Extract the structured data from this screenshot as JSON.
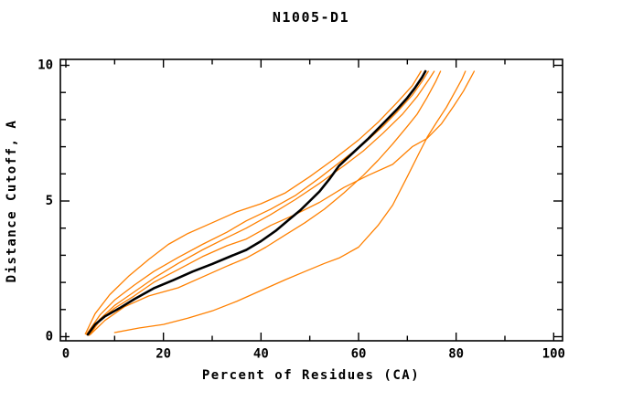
{
  "window": {
    "background": "#ffffff"
  },
  "chart_data": {
    "type": "line",
    "title": "N1005-D1",
    "xlabel": "Percent of Residues (CA)",
    "ylabel": "Distance Cutoff, A",
    "xlim": [
      0,
      100
    ],
    "ylim": [
      0,
      10
    ],
    "grid": false,
    "legend": "none",
    "frame": "full-box",
    "axis_color": "#000000",
    "highlight_color": "#000000",
    "comparison_color": "#ff8000",
    "x_major_ticks": [
      0,
      20,
      40,
      60,
      80,
      100
    ],
    "x_tick_labels": [
      "0",
      "20",
      "40",
      "60",
      "80",
      "100"
    ],
    "x_minor_tick_step": 10,
    "y_major_ticks": [
      0,
      5,
      10
    ],
    "y_tick_labels": [
      "0",
      "5",
      "10"
    ],
    "y_minor_tick_step": 1,
    "series": [
      {
        "name": "orange-curve-1",
        "color": "#ff8000",
        "line_width": 1.3,
        "points": [
          [
            4,
            0.1
          ],
          [
            6,
            0.85
          ],
          [
            9,
            1.55
          ],
          [
            13,
            2.25
          ],
          [
            17,
            2.85
          ],
          [
            21,
            3.4
          ],
          [
            25,
            3.8
          ],
          [
            30,
            4.2
          ],
          [
            35,
            4.6
          ],
          [
            40,
            4.9
          ],
          [
            45,
            5.3
          ],
          [
            50,
            5.9
          ],
          [
            55,
            6.55
          ],
          [
            60,
            7.25
          ],
          [
            64,
            7.9
          ],
          [
            68,
            8.65
          ],
          [
            71,
            9.25
          ],
          [
            72.8,
            9.78
          ]
        ]
      },
      {
        "name": "orange-curve-2",
        "color": "#ff8000",
        "line_width": 1.3,
        "points": [
          [
            4.2,
            0.08
          ],
          [
            7,
            0.8
          ],
          [
            10,
            1.35
          ],
          [
            14,
            1.9
          ],
          [
            18,
            2.4
          ],
          [
            23,
            2.92
          ],
          [
            28,
            3.4
          ],
          [
            33,
            3.85
          ],
          [
            37,
            4.27
          ],
          [
            42,
            4.7
          ],
          [
            47,
            5.2
          ],
          [
            52,
            5.85
          ],
          [
            57,
            6.55
          ],
          [
            61,
            7.1
          ],
          [
            65,
            7.75
          ],
          [
            68,
            8.3
          ],
          [
            71,
            8.9
          ],
          [
            73,
            9.4
          ],
          [
            74.3,
            9.78
          ]
        ]
      },
      {
        "name": "orange-curve-3",
        "color": "#ff8000",
        "line_width": 1.3,
        "points": [
          [
            4.5,
            0.05
          ],
          [
            7,
            0.65
          ],
          [
            10,
            1.15
          ],
          [
            14,
            1.65
          ],
          [
            18,
            2.15
          ],
          [
            23,
            2.7
          ],
          [
            28,
            3.2
          ],
          [
            33,
            3.65
          ],
          [
            37,
            4.0
          ],
          [
            42,
            4.5
          ],
          [
            47,
            5.05
          ],
          [
            52,
            5.65
          ],
          [
            57,
            6.3
          ],
          [
            61,
            6.85
          ],
          [
            65,
            7.5
          ],
          [
            69,
            8.2
          ],
          [
            72,
            8.85
          ],
          [
            74.5,
            9.5
          ],
          [
            75.5,
            9.78
          ]
        ]
      },
      {
        "name": "orange-curve-4",
        "color": "#ff8000",
        "line_width": 1.3,
        "points": [
          [
            4.8,
            0.05
          ],
          [
            7,
            0.6
          ],
          [
            10,
            1.05
          ],
          [
            14,
            1.5
          ],
          [
            18,
            2.0
          ],
          [
            23,
            2.47
          ],
          [
            28,
            2.95
          ],
          [
            33,
            3.35
          ],
          [
            37,
            3.6
          ],
          [
            42,
            4.1
          ],
          [
            47,
            4.5
          ],
          [
            52,
            4.95
          ],
          [
            57,
            5.5
          ],
          [
            62,
            5.95
          ],
          [
            67,
            6.35
          ],
          [
            71,
            7.0
          ],
          [
            74,
            7.3
          ],
          [
            77,
            7.85
          ],
          [
            79.5,
            8.5
          ],
          [
            81.5,
            9.05
          ],
          [
            83,
            9.55
          ],
          [
            83.7,
            9.78
          ]
        ]
      },
      {
        "name": "orange-curve-5",
        "color": "#ff8000",
        "line_width": 1.3,
        "points": [
          [
            5,
            0.08
          ],
          [
            8,
            0.6
          ],
          [
            12,
            1.1
          ],
          [
            17,
            1.5
          ],
          [
            23,
            1.8
          ],
          [
            28,
            2.2
          ],
          [
            33,
            2.6
          ],
          [
            37,
            2.9
          ],
          [
            41,
            3.3
          ],
          [
            45,
            3.75
          ],
          [
            49,
            4.2
          ],
          [
            53,
            4.7
          ],
          [
            57,
            5.3
          ],
          [
            61,
            5.95
          ],
          [
            64,
            6.5
          ],
          [
            67,
            7.1
          ],
          [
            70,
            7.75
          ],
          [
            72,
            8.2
          ],
          [
            74,
            8.8
          ],
          [
            75.8,
            9.4
          ],
          [
            76.8,
            9.78
          ]
        ]
      },
      {
        "name": "orange-curve-6",
        "color": "#ff8000",
        "line_width": 1.3,
        "points": [
          [
            10,
            0.15
          ],
          [
            15,
            0.32
          ],
          [
            20,
            0.45
          ],
          [
            25,
            0.68
          ],
          [
            30,
            0.95
          ],
          [
            35,
            1.3
          ],
          [
            40,
            1.7
          ],
          [
            45,
            2.1
          ],
          [
            49,
            2.4
          ],
          [
            53,
            2.7
          ],
          [
            56,
            2.9
          ],
          [
            60,
            3.3
          ],
          [
            64,
            4.1
          ],
          [
            67,
            4.85
          ],
          [
            70,
            5.9
          ],
          [
            72.5,
            6.8
          ],
          [
            74.1,
            7.36
          ],
          [
            76,
            7.9
          ],
          [
            78,
            8.45
          ],
          [
            80,
            9.1
          ],
          [
            81.2,
            9.5
          ],
          [
            81.9,
            9.78
          ]
        ]
      },
      {
        "name": "black-curve",
        "color": "#000000",
        "line_width": 2.6,
        "points": [
          [
            4.5,
            0.08
          ],
          [
            6,
            0.45
          ],
          [
            8,
            0.75
          ],
          [
            11,
            1.05
          ],
          [
            14,
            1.38
          ],
          [
            18,
            1.78
          ],
          [
            22,
            2.08
          ],
          [
            26,
            2.4
          ],
          [
            30,
            2.68
          ],
          [
            34,
            2.98
          ],
          [
            37,
            3.2
          ],
          [
            40,
            3.52
          ],
          [
            43,
            3.9
          ],
          [
            46,
            4.35
          ],
          [
            48,
            4.65
          ],
          [
            50,
            5.0
          ],
          [
            52,
            5.35
          ],
          [
            54,
            5.8
          ],
          [
            56,
            6.3
          ],
          [
            59,
            6.8
          ],
          [
            62,
            7.3
          ],
          [
            65,
            7.85
          ],
          [
            68,
            8.4
          ],
          [
            70,
            8.8
          ],
          [
            71.5,
            9.15
          ],
          [
            73,
            9.55
          ],
          [
            73.7,
            9.78
          ]
        ]
      }
    ]
  }
}
